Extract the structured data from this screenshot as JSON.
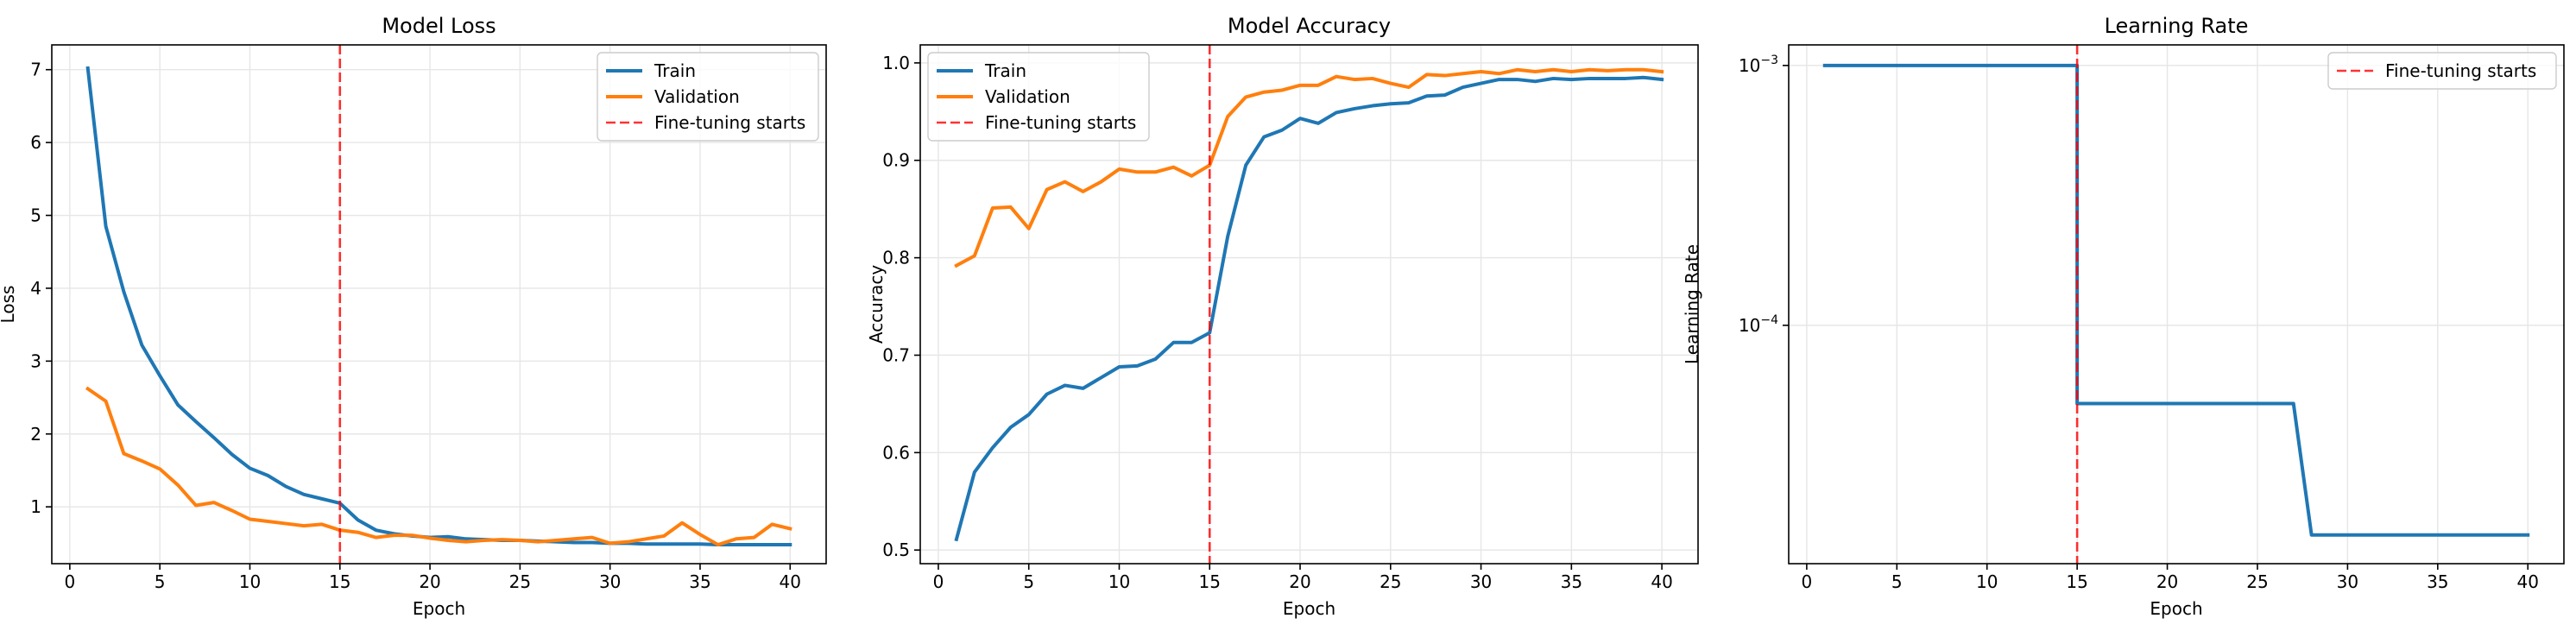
{
  "chart_data": [
    {
      "type": "line",
      "title": "Model Loss",
      "xlabel": "Epoch",
      "ylabel": "Loss",
      "xlim": [
        -1,
        42
      ],
      "ylim": [
        0.22,
        7.34
      ],
      "xticks": [
        0,
        5,
        10,
        15,
        20,
        25,
        30,
        35,
        40
      ],
      "yticks": [
        1,
        2,
        3,
        4,
        5,
        6,
        7
      ],
      "ytick_labels": [
        "1",
        "2",
        "3",
        "4",
        "5",
        "6",
        "7"
      ],
      "yscale": "linear",
      "grid": true,
      "legend_position": "upper right",
      "x": [
        1,
        2,
        3,
        4,
        5,
        6,
        7,
        8,
        9,
        10,
        11,
        12,
        13,
        14,
        15,
        16,
        17,
        18,
        19,
        20,
        21,
        22,
        23,
        24,
        25,
        26,
        27,
        28,
        29,
        30,
        31,
        32,
        33,
        34,
        35,
        36,
        37,
        38,
        39,
        40
      ],
      "series": [
        {
          "name": "Train",
          "color": "#1f77b4",
          "values": [
            7.02,
            4.85,
            3.95,
            3.22,
            2.8,
            2.4,
            2.17,
            1.95,
            1.72,
            1.53,
            1.43,
            1.28,
            1.17,
            1.11,
            1.05,
            0.82,
            0.68,
            0.63,
            0.6,
            0.58,
            0.59,
            0.56,
            0.55,
            0.54,
            0.54,
            0.53,
            0.52,
            0.51,
            0.51,
            0.5,
            0.5,
            0.49,
            0.49,
            0.49,
            0.49,
            0.48,
            0.48,
            0.48,
            0.48,
            0.48
          ]
        },
        {
          "name": "Validation",
          "color": "#ff7f0e",
          "values": [
            2.62,
            2.45,
            1.73,
            1.63,
            1.52,
            1.3,
            1.02,
            1.06,
            0.95,
            0.83,
            0.8,
            0.77,
            0.74,
            0.76,
            0.68,
            0.65,
            0.58,
            0.61,
            0.61,
            0.57,
            0.54,
            0.52,
            0.54,
            0.55,
            0.54,
            0.52,
            0.54,
            0.56,
            0.58,
            0.5,
            0.52,
            0.56,
            0.6,
            0.78,
            0.62,
            0.48,
            0.56,
            0.58,
            0.76,
            0.7
          ]
        }
      ],
      "vline": {
        "x": 15,
        "label": "Fine-tuning starts",
        "color": "#ff0000"
      }
    },
    {
      "type": "line",
      "title": "Model Accuracy",
      "xlabel": "Epoch",
      "ylabel": "Accuracy",
      "xlim": [
        -1,
        42
      ],
      "ylim": [
        0.486,
        1.0185
      ],
      "xticks": [
        0,
        5,
        10,
        15,
        20,
        25,
        30,
        35,
        40
      ],
      "yticks": [
        0.5,
        0.6,
        0.7,
        0.8,
        0.9,
        1.0
      ],
      "ytick_labels": [
        "0.5",
        "0.6",
        "0.7",
        "0.8",
        "0.9",
        "1.0"
      ],
      "yscale": "linear",
      "grid": true,
      "legend_position": "upper left",
      "x": [
        1,
        2,
        3,
        4,
        5,
        6,
        7,
        8,
        9,
        10,
        11,
        12,
        13,
        14,
        15,
        16,
        17,
        18,
        19,
        20,
        21,
        22,
        23,
        24,
        25,
        26,
        27,
        28,
        29,
        30,
        31,
        32,
        33,
        34,
        35,
        36,
        37,
        38,
        39,
        40
      ],
      "series": [
        {
          "name": "Train",
          "color": "#1f77b4",
          "values": [
            0.511,
            0.58,
            0.605,
            0.626,
            0.639,
            0.66,
            0.669,
            0.666,
            0.677,
            0.688,
            0.689,
            0.696,
            0.713,
            0.713,
            0.723,
            0.822,
            0.895,
            0.924,
            0.931,
            0.943,
            0.938,
            0.949,
            0.953,
            0.956,
            0.958,
            0.959,
            0.966,
            0.967,
            0.975,
            0.979,
            0.983,
            0.983,
            0.981,
            0.984,
            0.983,
            0.984,
            0.984,
            0.984,
            0.985,
            0.983
          ]
        },
        {
          "name": "Validation",
          "color": "#ff7f0e",
          "values": [
            0.792,
            0.802,
            0.851,
            0.852,
            0.83,
            0.87,
            0.878,
            0.868,
            0.878,
            0.891,
            0.888,
            0.888,
            0.893,
            0.884,
            0.895,
            0.945,
            0.965,
            0.97,
            0.972,
            0.977,
            0.977,
            0.986,
            0.983,
            0.984,
            0.979,
            0.975,
            0.988,
            0.987,
            0.989,
            0.991,
            0.989,
            0.993,
            0.991,
            0.993,
            0.991,
            0.993,
            0.992,
            0.993,
            0.993,
            0.991
          ]
        }
      ],
      "vline": {
        "x": 15,
        "label": "Fine-tuning starts",
        "color": "#ff0000"
      }
    },
    {
      "type": "line",
      "title": "Learning Rate",
      "xlabel": "Epoch",
      "ylabel": "Learning Rate",
      "xlim": [
        -1,
        42
      ],
      "ylim": [
        1.21e-05,
        0.0012
      ],
      "yscale": "log",
      "xticks": [
        0,
        5,
        10,
        15,
        20,
        25,
        30,
        35,
        40
      ],
      "yticks": [
        0.001,
        0.0001
      ],
      "ytick_labels": [
        {
          "base": "10",
          "exp": "−3"
        },
        {
          "base": "10",
          "exp": "−4"
        }
      ],
      "grid": true,
      "legend_position": "upper right",
      "x": [
        1,
        2,
        3,
        4,
        5,
        6,
        7,
        8,
        9,
        10,
        11,
        12,
        13,
        14,
        15,
        16,
        17,
        18,
        19,
        20,
        21,
        22,
        23,
        24,
        25,
        26,
        27,
        28,
        29,
        30,
        31,
        32,
        33,
        34,
        35,
        36,
        37,
        38,
        39,
        40
      ],
      "series": [
        {
          "color": "#1f77b4",
          "show_in_legend": false,
          "values": [
            0.001,
            0.001,
            0.001,
            0.001,
            0.001,
            0.001,
            0.001,
            0.001,
            0.001,
            0.001,
            0.001,
            0.001,
            0.001,
            0.001,
            0.001,
            5e-05,
            5e-05,
            5e-05,
            5e-05,
            5e-05,
            5e-05,
            5e-05,
            5e-05,
            5e-05,
            5e-05,
            5e-05,
            5e-05,
            1.56e-05,
            1.56e-05,
            1.56e-05,
            1.56e-05,
            1.56e-05,
            1.56e-05,
            1.56e-05,
            1.56e-05,
            1.56e-05,
            1.56e-05,
            1.56e-05,
            1.56e-05,
            1.56e-05
          ]
        }
      ],
      "vline": {
        "x": 15,
        "label": "Fine-tuning starts",
        "color": "#ff0000"
      }
    }
  ]
}
